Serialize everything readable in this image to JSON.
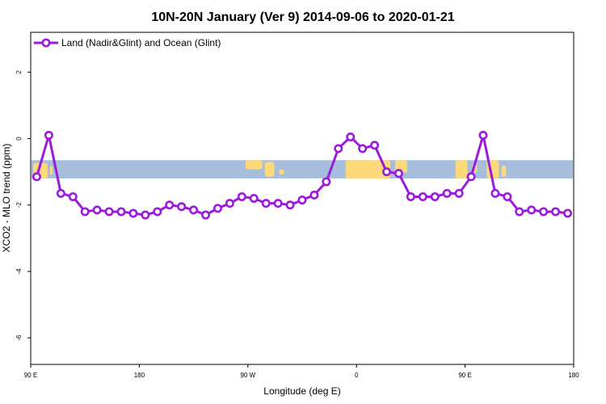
{
  "chart_data": {
    "type": "line",
    "title": "10N-20N January (Ver 9)   2014-09-06 to 2020-01-21",
    "xlabel": "Longitude (deg E)",
    "ylabel": "XCO2 - MLO trend (ppm)",
    "x_ticks": [
      {
        "value": 90,
        "label": "90 E"
      },
      {
        "value": 180,
        "label": "180"
      },
      {
        "value": 270,
        "label": "90 W"
      },
      {
        "value": 360,
        "label": "0"
      },
      {
        "value": 450,
        "label": "90 E"
      },
      {
        "value": 540,
        "label": "180"
      }
    ],
    "y_ticks": [
      {
        "value": 2,
        "label": "2"
      },
      {
        "value": 0,
        "label": "0"
      },
      {
        "value": -2,
        "label": "-2"
      },
      {
        "value": -4,
        "label": "-4"
      },
      {
        "value": -6,
        "label": "-6"
      }
    ],
    "xlim": [
      90,
      540
    ],
    "ylim": [
      -6.8,
      3.2
    ],
    "grid": false,
    "legend_position": "top-left",
    "colors": {
      "series": "#9a1bdc",
      "ocean": "#a7bddc",
      "land": "#fcd97a"
    },
    "map_band": {
      "y_top": -0.65,
      "y_bottom": -1.2
    },
    "series": [
      {
        "name": "Land (Nadir&Glint) and Ocean (Glint)",
        "x": [
          95,
          105,
          115,
          125,
          135,
          145,
          155,
          165,
          175,
          185,
          195,
          205,
          215,
          225,
          235,
          245,
          255,
          265,
          275,
          285,
          295,
          305,
          315,
          325,
          335,
          345,
          355,
          365,
          375,
          385,
          395,
          405,
          415,
          425,
          435,
          445,
          455,
          465,
          475,
          485,
          495,
          505,
          515,
          525,
          535
        ],
        "values": [
          -1.15,
          0.1,
          -1.65,
          -1.75,
          -2.2,
          -2.15,
          -2.2,
          -2.2,
          -2.25,
          -2.3,
          -2.2,
          -2.0,
          -2.05,
          -2.15,
          -2.3,
          -2.1,
          -1.95,
          -1.75,
          -1.8,
          -1.95,
          -1.95,
          -2.0,
          -1.85,
          -1.7,
          -1.3,
          -0.3,
          0.05,
          -0.3,
          -0.2,
          -1.0,
          -1.05,
          -1.75,
          -1.75,
          -1.75,
          -1.65,
          -1.65,
          -1.15,
          0.1,
          -1.65,
          -1.75,
          -2.2,
          -2.15,
          -2.2,
          -2.2,
          -2.25
        ]
      }
    ]
  }
}
